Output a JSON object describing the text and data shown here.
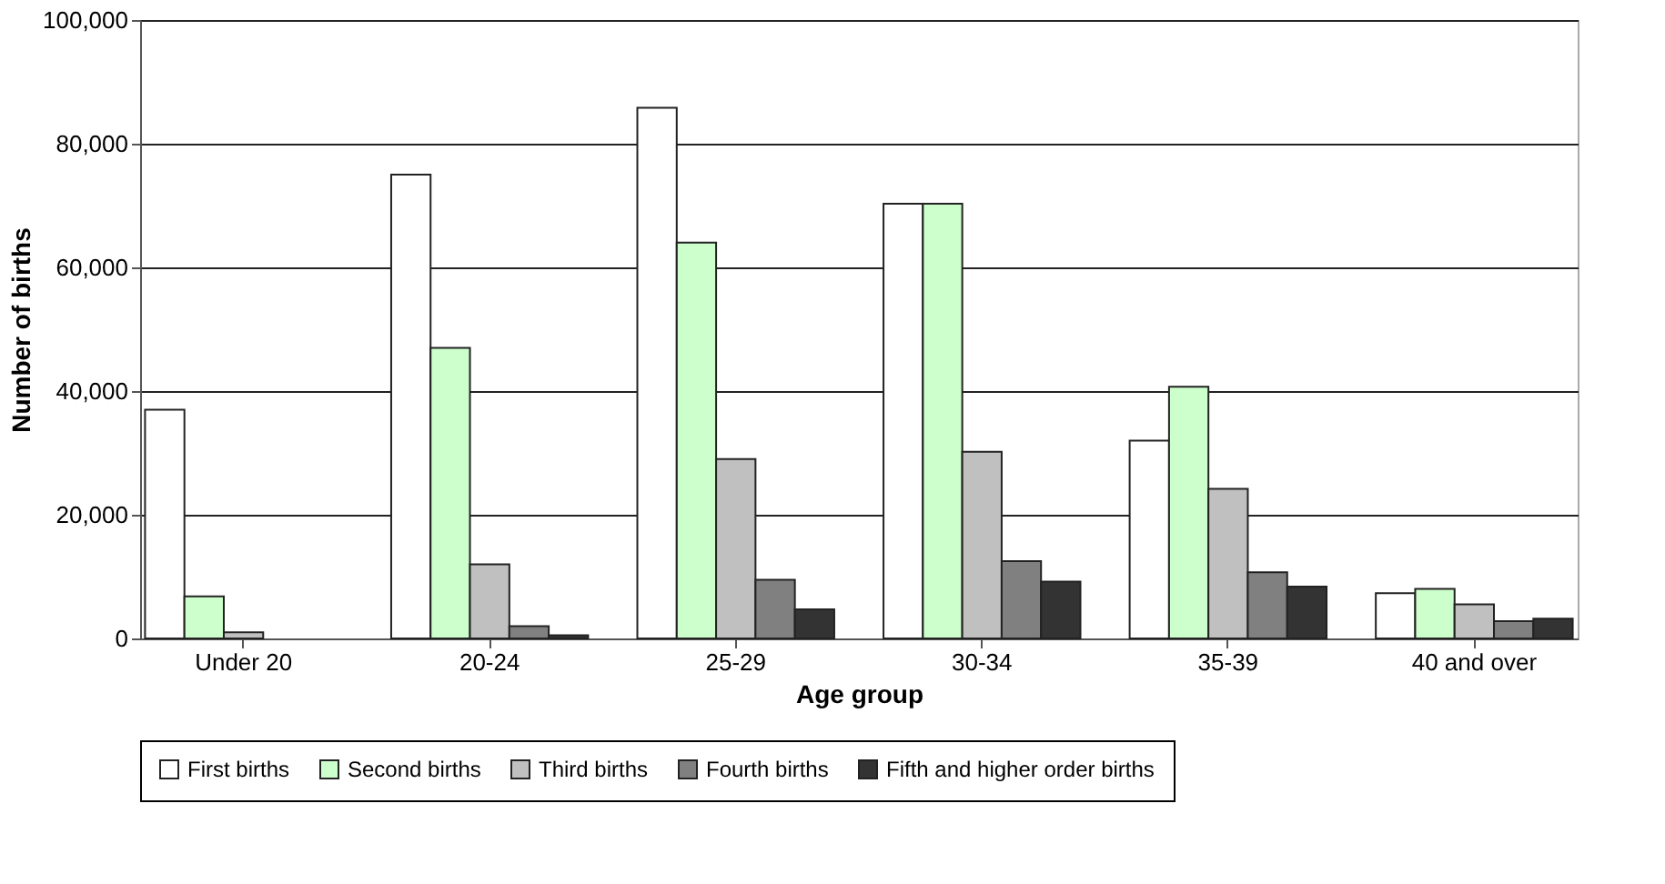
{
  "chart_data": {
    "type": "bar",
    "xlabel": "Age group",
    "ylabel": "Number of births",
    "categories": [
      "Under 20",
      "20-24",
      "25-29",
      "30-34",
      "35-39",
      "40 and over"
    ],
    "series": [
      {
        "name": "First births",
        "color": "#ffffff",
        "values": [
          37000,
          75000,
          85800,
          70300,
          32000,
          7300
        ]
      },
      {
        "name": "Second births",
        "color": "#ccffcc",
        "values": [
          6800,
          47000,
          64000,
          70300,
          40700,
          8000
        ]
      },
      {
        "name": "Third births",
        "color": "#c0c0c0",
        "values": [
          1000,
          12000,
          29000,
          30200,
          24200,
          5500
        ]
      },
      {
        "name": "Fourth births",
        "color": "#808080",
        "values": [
          null,
          2000,
          9500,
          12500,
          10700,
          2800
        ]
      },
      {
        "name": "Fifth and higher order births",
        "color": "#333333",
        "values": [
          null,
          500,
          4700,
          9200,
          8400,
          3200
        ]
      }
    ],
    "ylim": [
      0,
      100000
    ],
    "yticks": [
      0,
      {
        "value": 20000,
        "label": "20,000"
      },
      {
        "value": 40000,
        "label": "40,000"
      },
      {
        "value": 60000,
        "label": "60,000"
      },
      {
        "value": 80000,
        "label": "80,000"
      },
      {
        "value": 100000,
        "label": "100,000"
      }
    ],
    "grid": "y",
    "legend": "bottom"
  }
}
